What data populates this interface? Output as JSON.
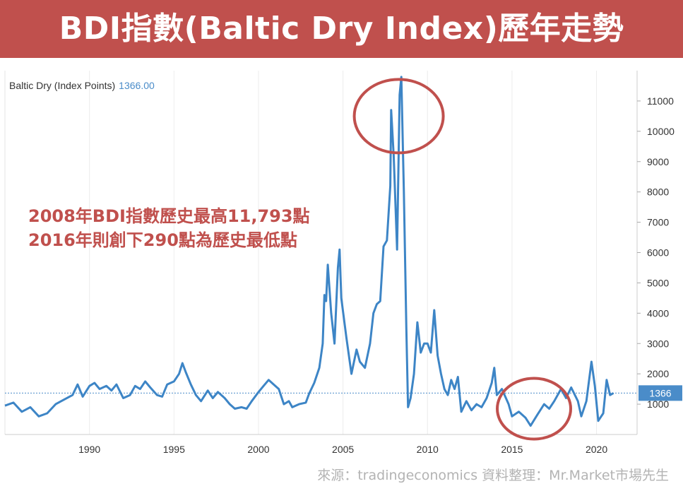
{
  "title": "BDI指數(Baltic Dry Index)歷年走勢",
  "legend": {
    "label": "Baltic Dry (Index Points)",
    "value": "1366.00"
  },
  "annotation": {
    "line1": "2008年BDI指數歷史最高11,793點",
    "line2": "2016年則創下290點為歷史最低點"
  },
  "source": "來源：tradingeconomics  資料整理：Mr.Market市場先生",
  "colors": {
    "title_bg": "#c0504d",
    "line": "#3d85c6",
    "highlight": "#c0504d",
    "current": "#4a8cc9"
  },
  "chart_data": {
    "type": "line",
    "series": [
      {
        "name": "Baltic Dry (Index Points)",
        "points": [
          [
            1985.0,
            950
          ],
          [
            1985.5,
            1050
          ],
          [
            1986.0,
            750
          ],
          [
            1986.5,
            900
          ],
          [
            1987.0,
            600
          ],
          [
            1987.5,
            700
          ],
          [
            1988.0,
            1000
          ],
          [
            1988.5,
            1150
          ],
          [
            1989.0,
            1300
          ],
          [
            1989.3,
            1650
          ],
          [
            1989.6,
            1250
          ],
          [
            1990.0,
            1600
          ],
          [
            1990.3,
            1700
          ],
          [
            1990.6,
            1500
          ],
          [
            1991.0,
            1600
          ],
          [
            1991.3,
            1450
          ],
          [
            1991.6,
            1650
          ],
          [
            1992.0,
            1200
          ],
          [
            1992.4,
            1300
          ],
          [
            1992.7,
            1600
          ],
          [
            1993.0,
            1500
          ],
          [
            1993.3,
            1750
          ],
          [
            1993.6,
            1550
          ],
          [
            1994.0,
            1300
          ],
          [
            1994.3,
            1250
          ],
          [
            1994.6,
            1650
          ],
          [
            1995.0,
            1750
          ],
          [
            1995.3,
            2000
          ],
          [
            1995.5,
            2350
          ],
          [
            1995.7,
            2050
          ],
          [
            1996.0,
            1650
          ],
          [
            1996.3,
            1300
          ],
          [
            1996.6,
            1100
          ],
          [
            1997.0,
            1450
          ],
          [
            1997.3,
            1200
          ],
          [
            1997.6,
            1400
          ],
          [
            1998.0,
            1200
          ],
          [
            1998.3,
            1000
          ],
          [
            1998.6,
            850
          ],
          [
            1999.0,
            900
          ],
          [
            1999.3,
            850
          ],
          [
            1999.6,
            1100
          ],
          [
            2000.0,
            1400
          ],
          [
            2000.3,
            1600
          ],
          [
            2000.6,
            1800
          ],
          [
            2000.9,
            1650
          ],
          [
            2001.2,
            1500
          ],
          [
            2001.5,
            1000
          ],
          [
            2001.8,
            1100
          ],
          [
            2002.0,
            900
          ],
          [
            2002.4,
            1000
          ],
          [
            2002.8,
            1050
          ],
          [
            2003.0,
            1350
          ],
          [
            2003.3,
            1700
          ],
          [
            2003.6,
            2200
          ],
          [
            2003.8,
            3000
          ],
          [
            2003.9,
            4600
          ],
          [
            2004.0,
            4400
          ],
          [
            2004.1,
            5600
          ],
          [
            2004.3,
            4000
          ],
          [
            2004.5,
            3000
          ],
          [
            2004.7,
            5500
          ],
          [
            2004.8,
            6100
          ],
          [
            2004.9,
            4500
          ],
          [
            2005.2,
            3200
          ],
          [
            2005.5,
            2000
          ],
          [
            2005.8,
            2800
          ],
          [
            2006.0,
            2400
          ],
          [
            2006.3,
            2200
          ],
          [
            2006.6,
            3000
          ],
          [
            2006.8,
            4000
          ],
          [
            2007.0,
            4300
          ],
          [
            2007.2,
            4400
          ],
          [
            2007.4,
            6200
          ],
          [
            2007.6,
            6400
          ],
          [
            2007.8,
            8200
          ],
          [
            2007.85,
            10700
          ],
          [
            2008.0,
            9200
          ],
          [
            2008.2,
            6100
          ],
          [
            2008.35,
            11200
          ],
          [
            2008.45,
            11793
          ],
          [
            2008.6,
            8000
          ],
          [
            2008.75,
            3500
          ],
          [
            2008.85,
            900
          ],
          [
            2009.0,
            1200
          ],
          [
            2009.2,
            2000
          ],
          [
            2009.4,
            3700
          ],
          [
            2009.6,
            2700
          ],
          [
            2009.8,
            3000
          ],
          [
            2010.0,
            3000
          ],
          [
            2010.2,
            2700
          ],
          [
            2010.4,
            4100
          ],
          [
            2010.6,
            2600
          ],
          [
            2010.8,
            2000
          ],
          [
            2011.0,
            1500
          ],
          [
            2011.2,
            1300
          ],
          [
            2011.4,
            1800
          ],
          [
            2011.6,
            1500
          ],
          [
            2011.8,
            1900
          ],
          [
            2012.0,
            750
          ],
          [
            2012.3,
            1100
          ],
          [
            2012.6,
            800
          ],
          [
            2012.9,
            1000
          ],
          [
            2013.2,
            900
          ],
          [
            2013.5,
            1200
          ],
          [
            2013.8,
            1700
          ],
          [
            2013.95,
            2200
          ],
          [
            2014.1,
            1300
          ],
          [
            2014.4,
            1500
          ],
          [
            2014.8,
            1000
          ],
          [
            2015.0,
            600
          ],
          [
            2015.4,
            750
          ],
          [
            2015.8,
            550
          ],
          [
            2016.1,
            290
          ],
          [
            2016.5,
            650
          ],
          [
            2016.9,
            1000
          ],
          [
            2017.2,
            850
          ],
          [
            2017.5,
            1100
          ],
          [
            2017.9,
            1500
          ],
          [
            2018.2,
            1200
          ],
          [
            2018.5,
            1550
          ],
          [
            2018.9,
            1100
          ],
          [
            2019.1,
            600
          ],
          [
            2019.4,
            1100
          ],
          [
            2019.7,
            2400
          ],
          [
            2019.9,
            1600
          ],
          [
            2020.1,
            450
          ],
          [
            2020.4,
            700
          ],
          [
            2020.6,
            1800
          ],
          [
            2020.8,
            1300
          ],
          [
            2021.0,
            1366
          ]
        ]
      }
    ],
    "current_value": 1366,
    "highlights": [
      {
        "label": "2008 peak",
        "x": 2008.3,
        "y": 10500
      },
      {
        "label": "2016 low",
        "x": 2016.3,
        "y": 850
      }
    ],
    "x_ticks": [
      1990,
      1995,
      2000,
      2005,
      2010,
      2015,
      2020
    ],
    "y_ticks": [
      1000,
      2000,
      3000,
      4000,
      5000,
      6000,
      7000,
      8000,
      9000,
      10000,
      11000
    ],
    "xlim": [
      1985,
      2022.4
    ],
    "ylim": [
      0,
      12000
    ],
    "grid": true,
    "legend_position": "top-left"
  }
}
